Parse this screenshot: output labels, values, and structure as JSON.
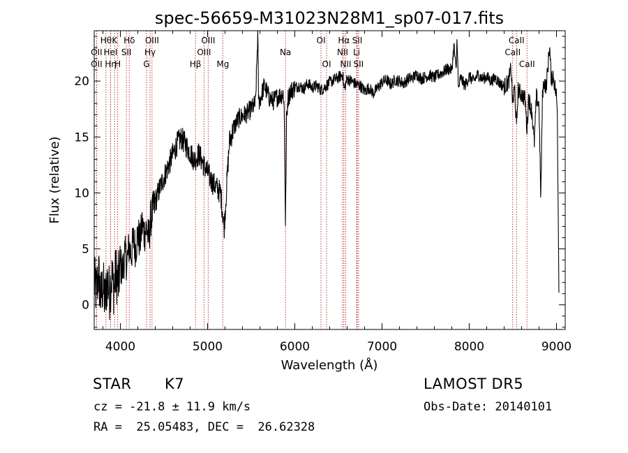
{
  "chart_data": {
    "type": "line",
    "title": "spec-56659-M31023N28M1_sp07-017.fits",
    "xlabel": "Wavelength (Å)",
    "ylabel": "Flux (relative)",
    "xlim": [
      3700,
      9100
    ],
    "ylim": [
      -2.2,
      24.5
    ],
    "x_ticks": [
      4000,
      5000,
      6000,
      7000,
      8000,
      9000
    ],
    "y_ticks": [
      0,
      5,
      10,
      15,
      20
    ],
    "grid": false,
    "line_color": "#000000",
    "marker_color": "#b22222",
    "series": [
      {
        "points": [
          [
            3700,
            2.0
          ],
          [
            3725,
            1.2
          ],
          [
            3750,
            2.8
          ],
          [
            3775,
            0.6
          ],
          [
            3800,
            1.8
          ],
          [
            3825,
            0.3
          ],
          [
            3850,
            2.2
          ],
          [
            3875,
            1.0
          ],
          [
            3900,
            2.6
          ],
          [
            3925,
            1.5
          ],
          [
            3950,
            2.9
          ],
          [
            3975,
            1.8
          ],
          [
            4000,
            3.6
          ],
          [
            4025,
            3.0
          ],
          [
            4050,
            4.6
          ],
          [
            4075,
            3.8
          ],
          [
            4100,
            5.2
          ],
          [
            4125,
            4.5
          ],
          [
            4150,
            5.8
          ],
          [
            4175,
            5.0
          ],
          [
            4200,
            6.4
          ],
          [
            4225,
            5.6
          ],
          [
            4250,
            7.2
          ],
          [
            4275,
            6.4
          ],
          [
            4300,
            6.9
          ],
          [
            4325,
            5.8
          ],
          [
            4350,
            7.8
          ],
          [
            4375,
            8.4
          ],
          [
            4400,
            9.2
          ],
          [
            4450,
            10.4
          ],
          [
            4500,
            11.4
          ],
          [
            4550,
            12.4
          ],
          [
            4600,
            13.4
          ],
          [
            4650,
            14.4
          ],
          [
            4700,
            14.9
          ],
          [
            4750,
            14.3
          ],
          [
            4800,
            13.6
          ],
          [
            4850,
            12.9
          ],
          [
            4900,
            13.5
          ],
          [
            4950,
            12.6
          ],
          [
            5000,
            11.8
          ],
          [
            5050,
            11.0
          ],
          [
            5100,
            10.5
          ],
          [
            5150,
            10.0
          ],
          [
            5175,
            8.0
          ],
          [
            5190,
            6.9
          ],
          [
            5210,
            9.5
          ],
          [
            5250,
            14.6
          ],
          [
            5300,
            15.8
          ],
          [
            5350,
            16.6
          ],
          [
            5400,
            16.9
          ],
          [
            5450,
            17.1
          ],
          [
            5500,
            17.5
          ],
          [
            5550,
            18.0
          ],
          [
            5575,
            24.2
          ],
          [
            5585,
            18.2
          ],
          [
            5600,
            18.3
          ],
          [
            5650,
            19.6
          ],
          [
            5700,
            18.6
          ],
          [
            5750,
            18.2
          ],
          [
            5800,
            18.6
          ],
          [
            5850,
            18.8
          ],
          [
            5870,
            18.9
          ],
          [
            5880,
            17.0
          ],
          [
            5893,
            6.9
          ],
          [
            5905,
            16.5
          ],
          [
            5920,
            18.4
          ],
          [
            5950,
            19.1
          ],
          [
            6000,
            19.4
          ],
          [
            6050,
            19.6
          ],
          [
            6100,
            19.3
          ],
          [
            6150,
            19.8
          ],
          [
            6200,
            19.4
          ],
          [
            6250,
            19.6
          ],
          [
            6300,
            19.2
          ],
          [
            6350,
            19.5
          ],
          [
            6400,
            19.9
          ],
          [
            6450,
            20.1
          ],
          [
            6500,
            20.3
          ],
          [
            6550,
            20.6
          ],
          [
            6563,
            19.2
          ],
          [
            6600,
            20.2
          ],
          [
            6650,
            20.0
          ],
          [
            6700,
            19.7
          ],
          [
            6750,
            19.6
          ],
          [
            6800,
            19.1
          ],
          [
            6850,
            19.4
          ],
          [
            6900,
            18.9
          ],
          [
            6950,
            19.4
          ],
          [
            7000,
            19.9
          ],
          [
            7050,
            20.1
          ],
          [
            7100,
            19.7
          ],
          [
            7150,
            20.1
          ],
          [
            7200,
            20.0
          ],
          [
            7250,
            19.8
          ],
          [
            7300,
            20.2
          ],
          [
            7350,
            20.3
          ],
          [
            7400,
            20.6
          ],
          [
            7450,
            20.2
          ],
          [
            7500,
            20.4
          ],
          [
            7550,
            20.5
          ],
          [
            7600,
            20.3
          ],
          [
            7650,
            20.6
          ],
          [
            7700,
            20.8
          ],
          [
            7750,
            21.1
          ],
          [
            7800,
            21.0
          ],
          [
            7825,
            23.2
          ],
          [
            7850,
            20.8
          ],
          [
            7860,
            24.2
          ],
          [
            7875,
            19.2
          ],
          [
            7900,
            20.3
          ],
          [
            7950,
            19.6
          ],
          [
            8000,
            20.4
          ],
          [
            8050,
            20.0
          ],
          [
            8100,
            20.6
          ],
          [
            8150,
            20.2
          ],
          [
            8200,
            20.4
          ],
          [
            8250,
            20.0
          ],
          [
            8300,
            20.3
          ],
          [
            8350,
            19.8
          ],
          [
            8400,
            19.5
          ],
          [
            8450,
            19.9
          ],
          [
            8480,
            21.2
          ],
          [
            8498,
            17.8
          ],
          [
            8520,
            19.5
          ],
          [
            8542,
            15.8
          ],
          [
            8560,
            19.2
          ],
          [
            8600,
            18.8
          ],
          [
            8640,
            18.4
          ],
          [
            8662,
            15.6
          ],
          [
            8680,
            18.5
          ],
          [
            8720,
            17.2
          ],
          [
            8745,
            14.4
          ],
          [
            8770,
            18.6
          ],
          [
            8800,
            17.8
          ],
          [
            8820,
            9.3
          ],
          [
            8840,
            19.0
          ],
          [
            8860,
            20.0
          ],
          [
            8880,
            19.4
          ],
          [
            8900,
            21.0
          ],
          [
            8920,
            23.2
          ],
          [
            8940,
            20.1
          ],
          [
            8960,
            20.6
          ],
          [
            8980,
            19.6
          ],
          [
            9000,
            18.6
          ],
          [
            9010,
            17.0
          ],
          [
            9020,
            8.0
          ],
          [
            9030,
            0.2
          ]
        ]
      }
    ],
    "line_markers": [
      {
        "wavelength": 3835,
        "label": "Hθ",
        "row": 0
      },
      {
        "wavelength": 3727,
        "label": "OII",
        "row": 1
      },
      {
        "wavelength": 3727,
        "label": "OII",
        "row": 2
      },
      {
        "wavelength": 3889,
        "label": "Hη",
        "row": 2
      },
      {
        "wavelength": 3934,
        "label": "K",
        "row": 0
      },
      {
        "wavelength": 3888,
        "label": "HeI",
        "row": 1
      },
      {
        "wavelength": 3969,
        "label": "H",
        "row": 2
      },
      {
        "wavelength": 4069,
        "label": "SII",
        "row": 1
      },
      {
        "wavelength": 4102,
        "label": "Hδ",
        "row": 0
      },
      {
        "wavelength": 4300,
        "label": "G",
        "row": 2
      },
      {
        "wavelength": 4340,
        "label": "Hγ",
        "row": 1
      },
      {
        "wavelength": 4363,
        "label": "OIII",
        "row": 0
      },
      {
        "wavelength": 4861,
        "label": "Hβ",
        "row": 2
      },
      {
        "wavelength": 4959,
        "label": "OIII",
        "row": 1
      },
      {
        "wavelength": 5007,
        "label": "OIII",
        "row": 0
      },
      {
        "wavelength": 5175,
        "label": "Mg",
        "row": 2
      },
      {
        "wavelength": 5893,
        "label": "Na",
        "row": 1
      },
      {
        "wavelength": 6300,
        "label": "OI",
        "row": 0
      },
      {
        "wavelength": 6364,
        "label": "OI",
        "row": 2
      },
      {
        "wavelength": 6548,
        "label": "NII",
        "row": 1
      },
      {
        "wavelength": 6563,
        "label": "Hα",
        "row": 0
      },
      {
        "wavelength": 6583,
        "label": "NII",
        "row": 2
      },
      {
        "wavelength": 6708,
        "label": "Li",
        "row": 1
      },
      {
        "wavelength": 6716,
        "label": "SII",
        "row": 0
      },
      {
        "wavelength": 6731,
        "label": "SII",
        "row": 2
      },
      {
        "wavelength": 8498,
        "label": "CaII",
        "row": 1
      },
      {
        "wavelength": 8542,
        "label": "CaII",
        "row": 0
      },
      {
        "wavelength": 8662,
        "label": "CaII",
        "row": 2
      }
    ]
  },
  "info": {
    "object_class": "STAR",
    "subclass": "K7",
    "survey": "LAMOST DR5",
    "velocity": "cz = -21.8 ± 11.9 km/s",
    "obs_date": "Obs-Date: 20140101",
    "coords": "RA =  25.05483, DEC =  26.62328"
  }
}
